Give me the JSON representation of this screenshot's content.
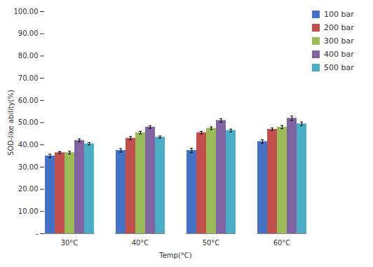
{
  "chart_data": {
    "type": "bar",
    "categories": [
      "30°C",
      "40°C",
      "50°C",
      "60°C"
    ],
    "series": [
      {
        "name": "100 bar",
        "color": "#4472C4",
        "values": [
          35.0,
          37.5,
          37.5,
          41.5
        ],
        "errors": [
          0.8,
          0.8,
          1.0,
          0.8
        ]
      },
      {
        "name": "200 bar",
        "color": "#C0504D",
        "values": [
          36.5,
          43.0,
          45.5,
          47.0
        ],
        "errors": [
          0.5,
          0.7,
          0.6,
          0.6
        ]
      },
      {
        "name": "300 bar",
        "color": "#9BBB59",
        "values": [
          36.5,
          45.5,
          47.5,
          48.0
        ],
        "errors": [
          0.6,
          0.6,
          0.6,
          0.7
        ]
      },
      {
        "name": "400 bar",
        "color": "#8064A2",
        "values": [
          42.0,
          48.0,
          51.0,
          52.0
        ],
        "errors": [
          0.7,
          0.6,
          0.8,
          1.0
        ]
      },
      {
        "name": "500 bar",
        "color": "#4BACC6",
        "values": [
          40.5,
          43.5,
          46.5,
          49.5
        ],
        "errors": [
          0.5,
          0.5,
          0.6,
          0.8
        ]
      }
    ],
    "xlabel": "Temp(°C)",
    "ylabel": "SOD-like ability(%)",
    "ylim": [
      0,
      100
    ],
    "yticks": [
      {
        "value": 0,
        "label": "-"
      },
      {
        "value": 10,
        "label": "10.00"
      },
      {
        "value": 20,
        "label": "20.00"
      },
      {
        "value": 30,
        "label": "30.00"
      },
      {
        "value": 40,
        "label": "40.00"
      },
      {
        "value": 50,
        "label": "50.00"
      },
      {
        "value": 60,
        "label": "60.00"
      },
      {
        "value": 70,
        "label": "70.00"
      },
      {
        "value": 80,
        "label": "80.00"
      },
      {
        "value": 90,
        "label": "90.00"
      },
      {
        "value": 100,
        "label": "100.00"
      }
    ],
    "grid": false,
    "legend": "right"
  }
}
